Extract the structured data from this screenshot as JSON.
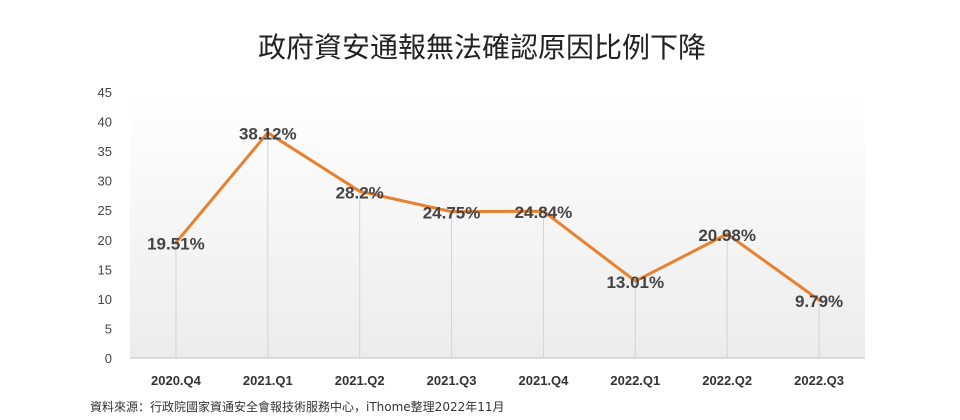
{
  "chart_data": {
    "type": "line",
    "title": "政府資安通報無法確認原因比例下降",
    "categories": [
      "2020.Q4",
      "2021.Q1",
      "2021.Q2",
      "2021.Q3",
      "2021.Q4",
      "2022.Q1",
      "2022.Q2",
      "2022.Q3"
    ],
    "series": [
      {
        "values": [
          19.51,
          38.12,
          28.2,
          24.75,
          24.84,
          13.01,
          20.98,
          9.79
        ],
        "labels": [
          "19.51%",
          "38.12%",
          "28.2%",
          "24.75%",
          "24.84%",
          "13.01%",
          "20.98%",
          "9.79%"
        ],
        "color": "#E8812F"
      }
    ],
    "yticks": [
      "0",
      "5",
      "10",
      "15",
      "20",
      "25",
      "30",
      "35",
      "40",
      "45"
    ],
    "ylim": [
      0,
      45
    ],
    "grid": "vertical drop lines",
    "legend": "none"
  },
  "source": "資料來源：行政院國家資通安全會報技術服務中心，iThome整理2022年11月",
  "colors": {
    "background_gradient_top": "#ffffff",
    "background_gradient_bottom": "#ececec",
    "drop_line": "#d4d4d4",
    "axis": "#bfbfbf"
  }
}
